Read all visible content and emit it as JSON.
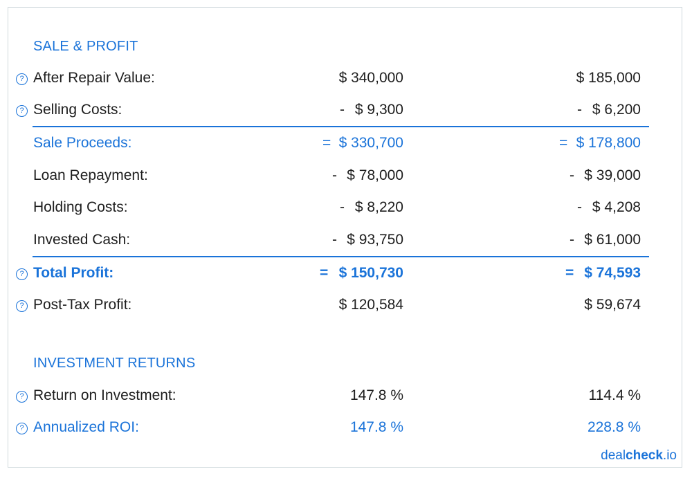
{
  "sale_profit": {
    "title": "SALE & PROFIT",
    "rows": [
      {
        "label": "After Repair Value:",
        "op1": "",
        "v1": "$ 340,000",
        "op2": "",
        "v2": "$ 185,000"
      },
      {
        "label": "Selling Costs:",
        "op1": "-",
        "v1": "$ 9,300",
        "op2": "-",
        "v2": "$ 6,200"
      },
      {
        "label": "Sale Proceeds:",
        "op1": "=",
        "v1": "$ 330,700",
        "op2": "=",
        "v2": "$ 178,800"
      },
      {
        "label": "Loan Repayment:",
        "op1": "-",
        "v1": "$ 78,000",
        "op2": "-",
        "v2": "$ 39,000"
      },
      {
        "label": "Holding Costs:",
        "op1": "-",
        "v1": "$ 8,220",
        "op2": "-",
        "v2": "$ 4,208"
      },
      {
        "label": "Invested Cash:",
        "op1": "-",
        "v1": "$ 93,750",
        "op2": "-",
        "v2": "$ 61,000"
      },
      {
        "label": "Total Profit:",
        "op1": "=",
        "v1": "$ 150,730",
        "op2": "=",
        "v2": "$ 74,593"
      },
      {
        "label": "Post-Tax Profit:",
        "op1": "",
        "v1": "$ 120,584",
        "op2": "",
        "v2": "$ 59,674"
      }
    ]
  },
  "investment_returns": {
    "title": "INVESTMENT RETURNS",
    "rows": [
      {
        "label": "Return on Investment:",
        "v1": "147.8 %",
        "v2": "114.4 %"
      },
      {
        "label": "Annualized ROI:",
        "v1": "147.8 %",
        "v2": "228.8 %"
      }
    ]
  },
  "help_icon_glyph": "?",
  "brand": {
    "deal": "deal",
    "check": "check",
    "io": ".io"
  },
  "colors": {
    "accent": "#1a73d9",
    "text": "#1e1e1e",
    "border": "#cfd8dc"
  }
}
